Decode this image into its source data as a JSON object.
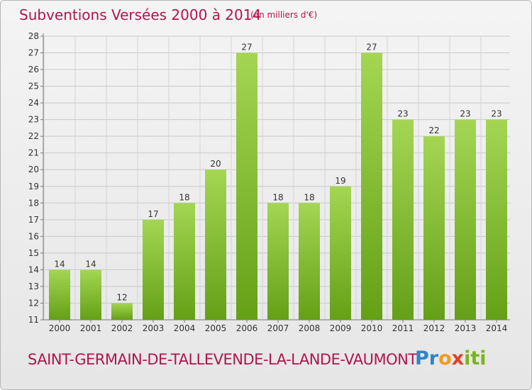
{
  "header": {
    "title": "Subventions Versées 2000 à 2014",
    "unit_note": "(en milliers d'€)"
  },
  "footer": {
    "commune": "SAINT-GERMAIN-DE-TALLEVENDE-LA-LANDE-VAUMONT",
    "logo": "Proxiti"
  },
  "colors": {
    "accent": "#b0154f",
    "bar_light": "#9fd24a",
    "bar_dark": "#6aa51c",
    "grid": "#c8c8c8"
  },
  "chart_data": {
    "type": "bar",
    "title": "Subventions Versées 2000 à 2014",
    "subtitle": "(en milliers d'€)",
    "xlabel": "",
    "ylabel": "",
    "categories": [
      "2000",
      "2001",
      "2002",
      "2003",
      "2004",
      "2005",
      "2006",
      "2007",
      "2008",
      "2009",
      "2010",
      "2011",
      "2012",
      "2013",
      "2014"
    ],
    "values": [
      14,
      14,
      12,
      17,
      18,
      20,
      27,
      18,
      18,
      19,
      27,
      23,
      22,
      23,
      23
    ],
    "ylim": [
      11,
      28
    ],
    "yticks": [
      11,
      12,
      13,
      14,
      15,
      16,
      17,
      18,
      19,
      20,
      21,
      22,
      23,
      24,
      25,
      26,
      27,
      28
    ],
    "grid": true,
    "legend": "none"
  }
}
